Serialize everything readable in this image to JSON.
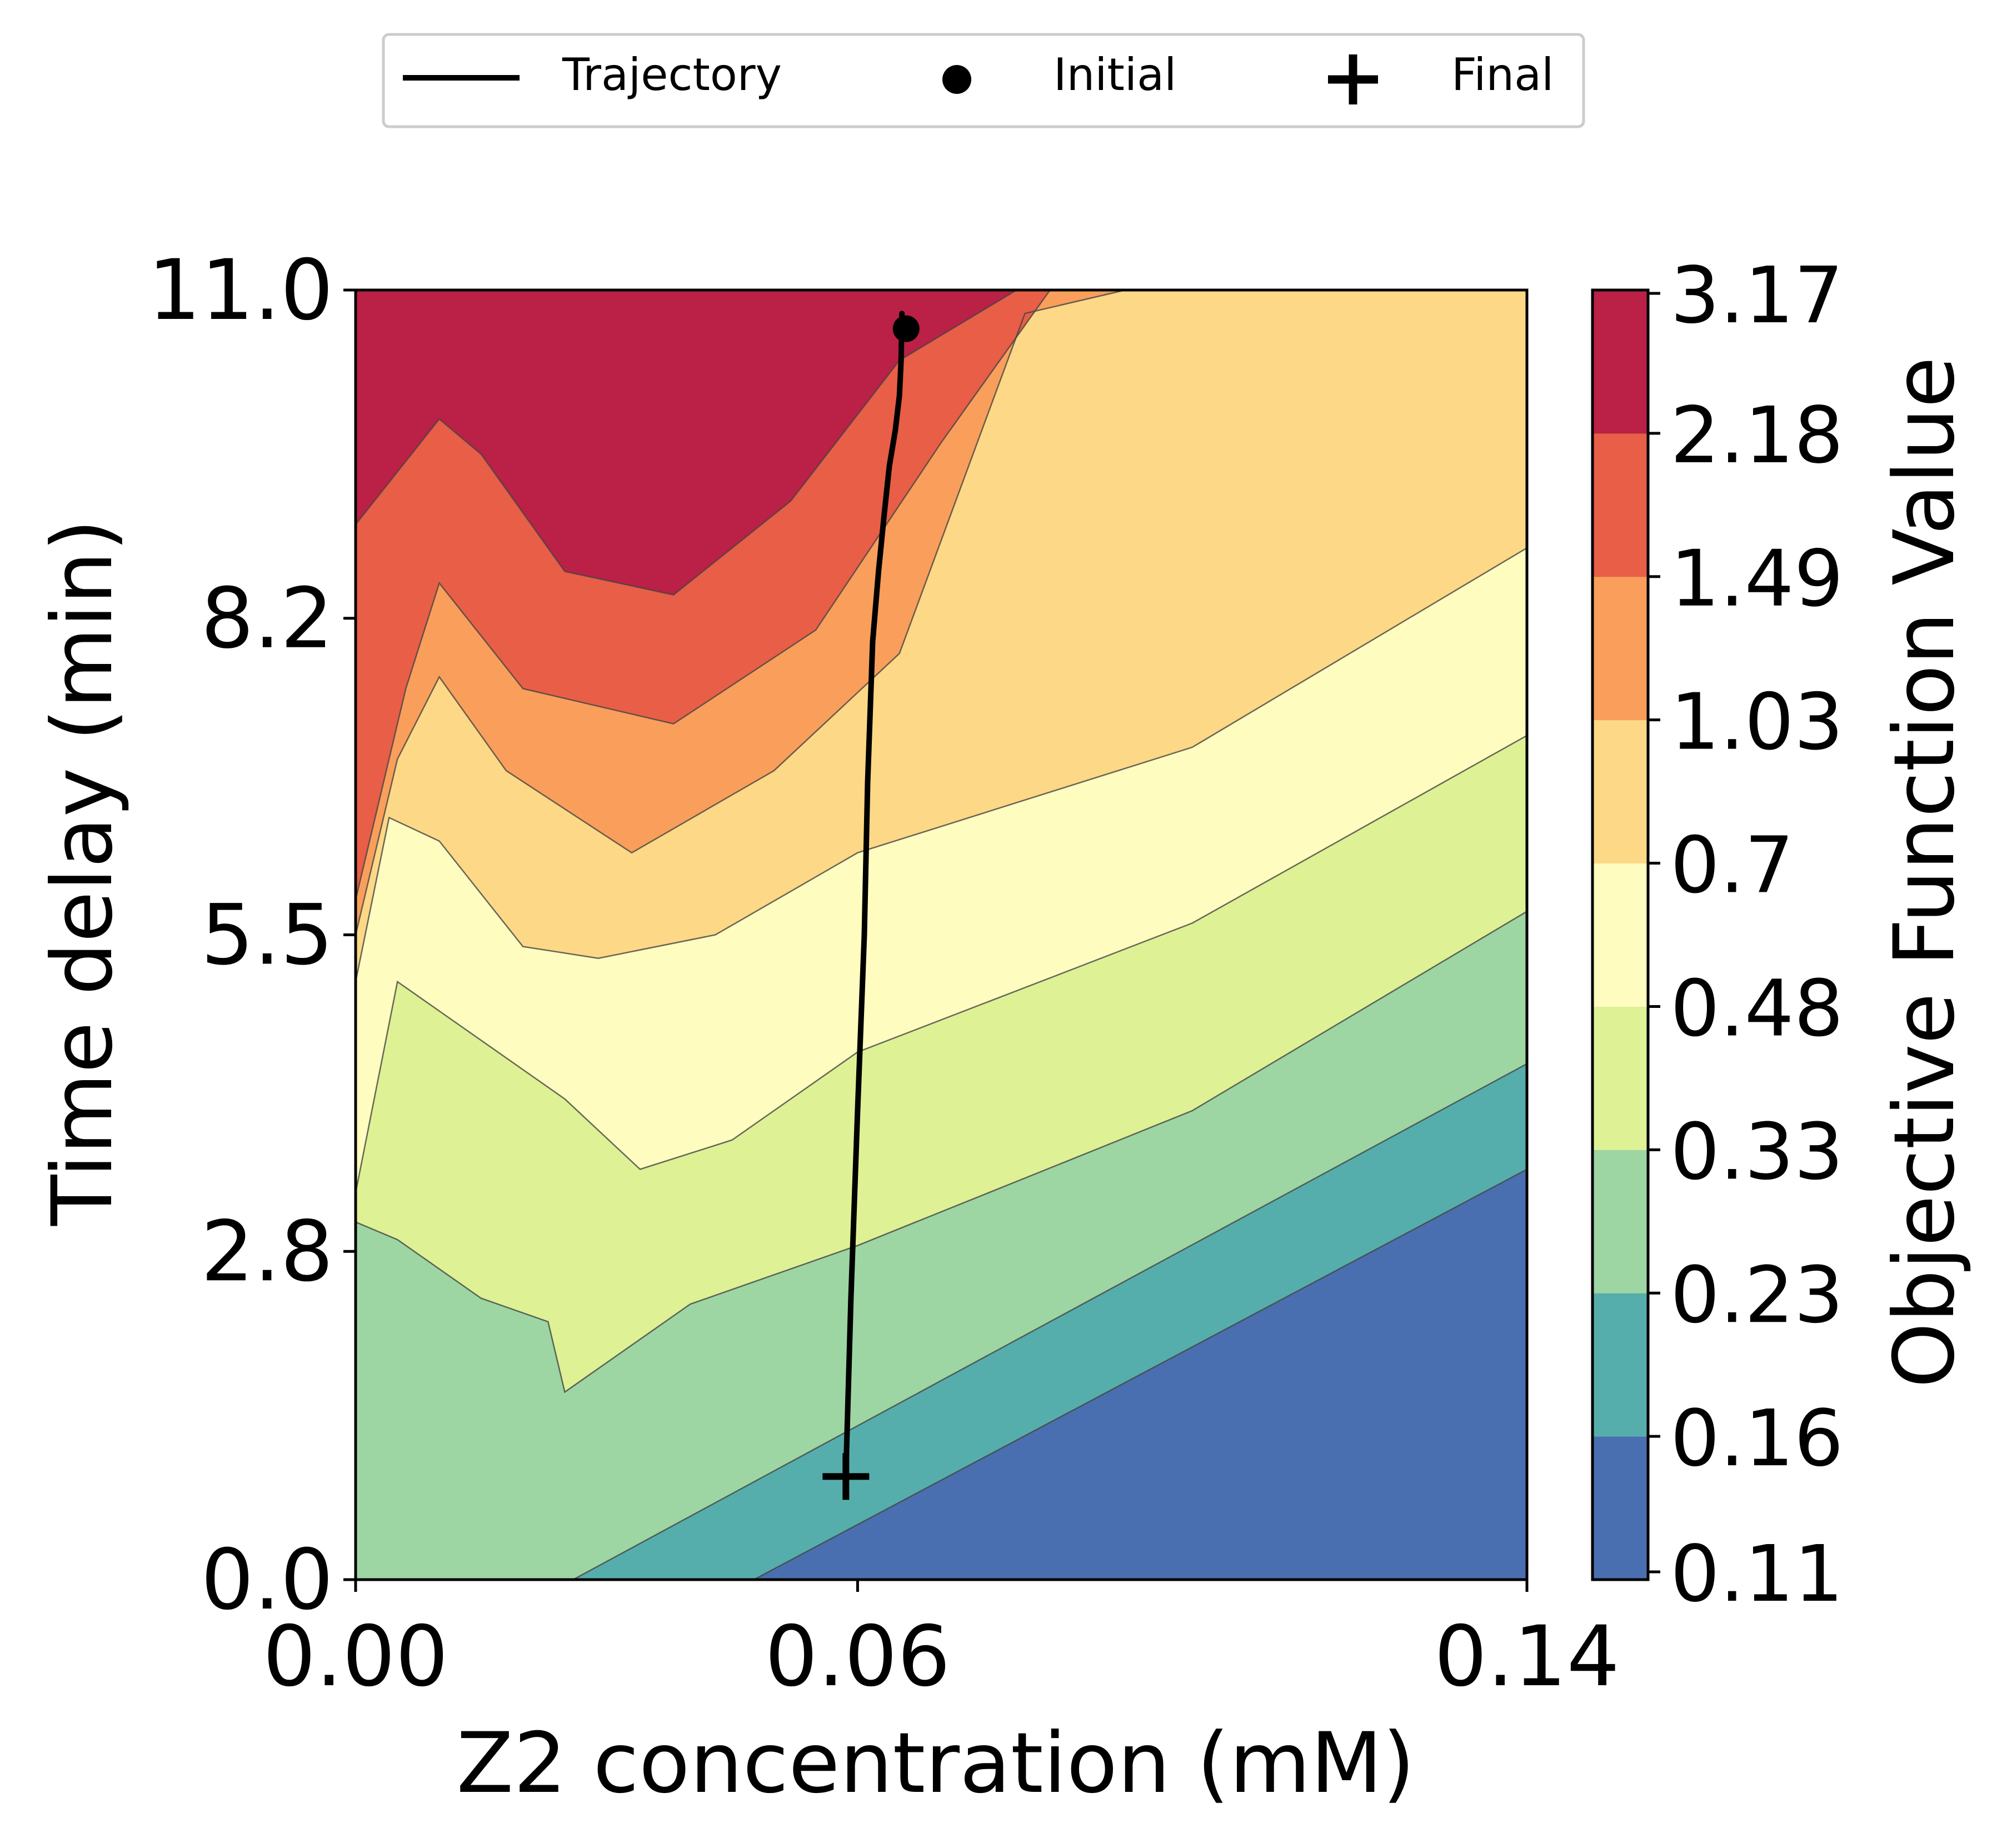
{
  "chart_data": {
    "type": "contour",
    "xlabel": "Z2 concentration (mM)",
    "ylabel": "Time delay (min)",
    "xlim": [
      0.0,
      0.14
    ],
    "ylim": [
      0.0,
      11.0
    ],
    "x_ticks": [
      "0.00",
      "0.06",
      "0.14"
    ],
    "y_ticks": [
      "0.0",
      "2.8",
      "5.5",
      "8.2",
      "11.0"
    ],
    "colorbar": {
      "label": "Objective Function Value",
      "levels": [
        "0.11",
        "0.16",
        "0.23",
        "0.33",
        "0.48",
        "0.7",
        "1.03",
        "1.49",
        "2.18",
        "3.17"
      ],
      "colors": [
        "#4a6fb1",
        "#56aeac",
        "#9dd6a3",
        "#def195",
        "#fffcbf",
        "#fdd886",
        "#f99f5b",
        "#e85e47",
        "#bb2046"
      ]
    },
    "contour_boundaries": [
      {
        "between": [
          "0.11",
          "0.16"
        ],
        "points": [
          [
            0.0476,
            0.0
          ],
          [
            0.14,
            3.5
          ]
        ]
      },
      {
        "between": [
          "0.16",
          "0.23"
        ],
        "points": [
          [
            0.026,
            0.0
          ],
          [
            0.14,
            4.4
          ]
        ]
      },
      {
        "between": [
          "0.23",
          "0.33"
        ],
        "points": [
          [
            0.0,
            3.05
          ],
          [
            0.005,
            2.9
          ],
          [
            0.015,
            2.4
          ],
          [
            0.023,
            2.2
          ],
          [
            0.025,
            1.6
          ],
          [
            0.04,
            2.35
          ],
          [
            0.06,
            2.85
          ],
          [
            0.1,
            4.0
          ],
          [
            0.14,
            5.7
          ]
        ]
      },
      {
        "between": [
          "0.33",
          "0.48"
        ],
        "points": [
          [
            0.0,
            3.3
          ],
          [
            0.005,
            5.1
          ],
          [
            0.015,
            4.6
          ],
          [
            0.025,
            4.1
          ],
          [
            0.034,
            3.5
          ],
          [
            0.045,
            3.75
          ],
          [
            0.06,
            4.5
          ],
          [
            0.1,
            5.6
          ],
          [
            0.14,
            7.2
          ]
        ]
      },
      {
        "between": [
          "0.48",
          "0.7"
        ],
        "points": [
          [
            0.0,
            5.1
          ],
          [
            0.004,
            6.5
          ],
          [
            0.01,
            6.3
          ],
          [
            0.02,
            5.4
          ],
          [
            0.029,
            5.3
          ],
          [
            0.043,
            5.5
          ],
          [
            0.06,
            6.2
          ],
          [
            0.1,
            7.1
          ],
          [
            0.14,
            8.8
          ]
        ]
      },
      {
        "between": [
          "0.7",
          "1.03"
        ],
        "points": [
          [
            0.0,
            5.5
          ],
          [
            0.005,
            7.0
          ],
          [
            0.01,
            7.7
          ],
          [
            0.018,
            6.9
          ],
          [
            0.033,
            6.2
          ],
          [
            0.05,
            6.9
          ],
          [
            0.065,
            7.9
          ],
          [
            0.08,
            10.8
          ],
          [
            0.092,
            11.0
          ]
        ]
      },
      {
        "between": [
          "1.03",
          "1.49"
        ],
        "points": [
          [
            0.0,
            5.8
          ],
          [
            0.006,
            7.6
          ],
          [
            0.01,
            8.5
          ],
          [
            0.02,
            7.6
          ],
          [
            0.038,
            7.3
          ],
          [
            0.055,
            8.1
          ],
          [
            0.07,
            9.7
          ],
          [
            0.083,
            11.0
          ]
        ]
      },
      {
        "between": [
          "1.49",
          "2.18"
        ],
        "points": [
          [
            0.0,
            9.0
          ],
          [
            0.01,
            9.9
          ],
          [
            0.015,
            9.6
          ],
          [
            0.025,
            8.6
          ],
          [
            0.038,
            8.4
          ],
          [
            0.052,
            9.2
          ],
          [
            0.065,
            10.4
          ],
          [
            0.079,
            11.0
          ]
        ]
      }
    ],
    "series": [
      {
        "name": "Trajectory",
        "type": "line",
        "x": [
          0.0653,
          0.0652,
          0.065,
          0.0645,
          0.0638,
          0.0632,
          0.0625,
          0.0618,
          0.0612,
          0.0608,
          0.06,
          0.0592,
          0.0586
        ],
        "y": [
          10.8,
          10.4,
          10.1,
          9.8,
          9.5,
          9.1,
          8.6,
          8.0,
          6.8,
          5.5,
          4.0,
          2.4,
          0.9
        ]
      },
      {
        "name": "Initial",
        "type": "marker",
        "marker": "circle",
        "x": 0.0658,
        "y": 10.67
      },
      {
        "name": "Final",
        "type": "marker",
        "marker": "plus",
        "x": 0.0586,
        "y": 0.88
      }
    ],
    "legend": {
      "position": "top-center",
      "entries": [
        "Trajectory",
        "Initial",
        "Final"
      ]
    }
  }
}
